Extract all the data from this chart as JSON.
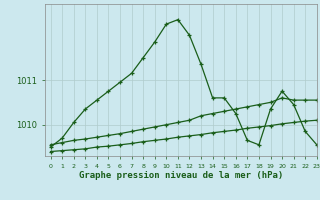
{
  "title": "Graphe pression niveau de la mer (hPa)",
  "bg_color": "#cce8ee",
  "grid_color": "#b0cccc",
  "line_color": "#1a5e1a",
  "xlim": [
    -0.5,
    23
  ],
  "ylim": [
    1009.3,
    1012.7
  ],
  "yticks": [
    1010,
    1011
  ],
  "xticks": [
    0,
    1,
    2,
    3,
    4,
    5,
    6,
    7,
    8,
    9,
    10,
    11,
    12,
    13,
    14,
    15,
    16,
    17,
    18,
    19,
    20,
    21,
    22,
    23
  ],
  "series1": {
    "x": [
      0,
      1,
      2,
      3,
      4,
      5,
      6,
      7,
      8,
      9,
      10,
      11,
      12,
      13,
      14,
      15,
      16,
      17,
      18,
      19,
      20,
      21,
      22,
      23
    ],
    "y": [
      1009.5,
      1009.7,
      1010.05,
      1010.35,
      1010.55,
      1010.75,
      1010.95,
      1011.15,
      1011.5,
      1011.85,
      1012.25,
      1012.35,
      1012.0,
      1011.35,
      1010.6,
      1010.6,
      1010.25,
      1009.65,
      1009.55,
      1010.35,
      1010.75,
      1010.45,
      1009.85,
      1009.55
    ]
  },
  "series2": {
    "x": [
      0,
      1,
      2,
      3,
      4,
      5,
      6,
      7,
      8,
      9,
      10,
      11,
      12,
      13,
      14,
      15,
      16,
      17,
      18,
      19,
      20,
      21,
      22,
      23
    ],
    "y": [
      1009.55,
      1009.6,
      1009.65,
      1009.68,
      1009.72,
      1009.76,
      1009.8,
      1009.85,
      1009.9,
      1009.95,
      1010.0,
      1010.05,
      1010.1,
      1010.2,
      1010.25,
      1010.3,
      1010.35,
      1010.4,
      1010.45,
      1010.5,
      1010.6,
      1010.55,
      1010.55,
      1010.55
    ]
  },
  "series3": {
    "x": [
      0,
      1,
      2,
      3,
      4,
      5,
      6,
      7,
      8,
      9,
      10,
      11,
      12,
      13,
      14,
      15,
      16,
      17,
      18,
      19,
      20,
      21,
      22,
      23
    ],
    "y": [
      1009.4,
      1009.42,
      1009.44,
      1009.46,
      1009.5,
      1009.52,
      1009.55,
      1009.58,
      1009.62,
      1009.65,
      1009.68,
      1009.72,
      1009.75,
      1009.78,
      1009.82,
      1009.85,
      1009.88,
      1009.92,
      1009.95,
      1009.98,
      1010.02,
      1010.05,
      1010.08,
      1010.1
    ]
  }
}
